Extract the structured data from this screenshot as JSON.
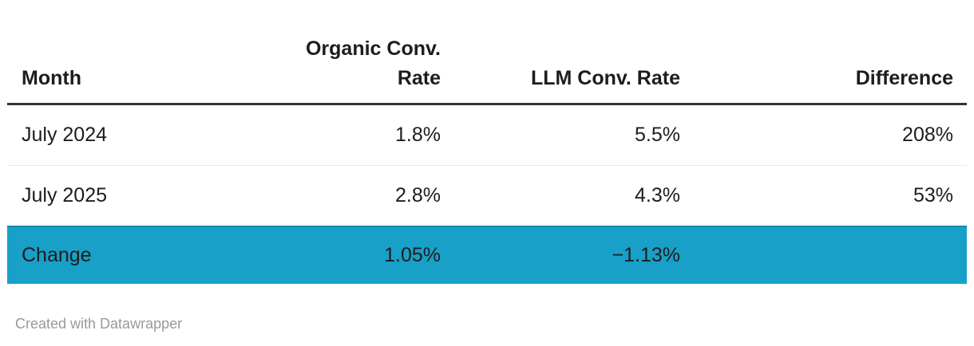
{
  "chart_data": {
    "type": "table",
    "columns": [
      "Month",
      "Organic Conv. Rate",
      "LLM Conv. Rate",
      "Difference"
    ],
    "rows": [
      [
        "July 2024",
        "1.8%",
        "5.5%",
        "208%"
      ],
      [
        "July 2025",
        "2.8%",
        "4.3%",
        "53%"
      ],
      [
        "Change",
        "1.05%",
        "−1.13%",
        ""
      ]
    ],
    "numeric_values": {
      "organic_conv_rate_pct": [
        1.8,
        2.8,
        1.05
      ],
      "llm_conv_rate_pct": [
        5.5,
        4.3,
        -1.13
      ],
      "difference_pct": [
        208,
        53,
        null
      ]
    },
    "highlight_row": "Change",
    "highlight_color": "#18a0c8",
    "layout_hints": {
      "first_column_align": "left",
      "value_columns_align": "right",
      "header_rule_color": "#333333",
      "row_separator_color": "#e8e8e8"
    }
  },
  "footer": {
    "credit": "Created with Datawrapper"
  }
}
